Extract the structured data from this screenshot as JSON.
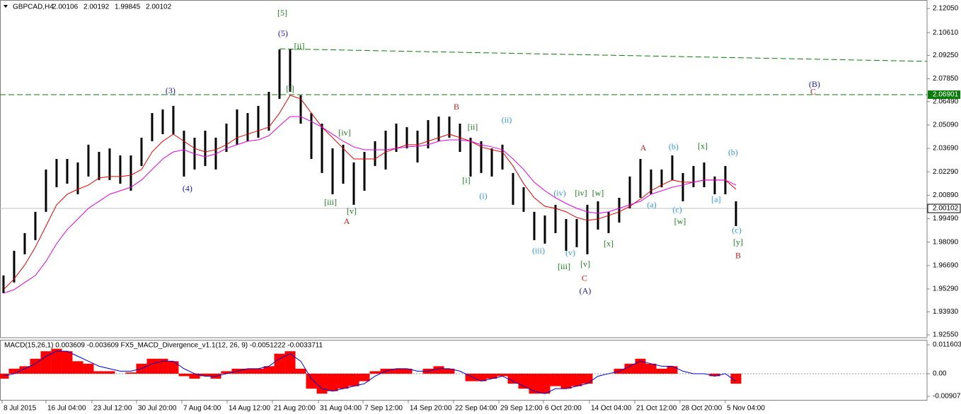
{
  "chart_data": [
    {
      "type": "ohlc",
      "title": "GBPCAD,H4",
      "ohlc": [
        2.00106,
        2.00192,
        1.99845,
        2.00102
      ],
      "color": "#000000",
      "grid": false,
      "xlim": [
        -0.33,
        87
      ],
      "ylim": [
        1.9238,
        2.1243
      ],
      "yticks": [
        {
          "value": 2.1205,
          "label": "2.12050"
        },
        {
          "value": 2.1061,
          "label": "2.10610"
        },
        {
          "value": 2.0925,
          "label": "2.09250"
        },
        {
          "value": 2.0785,
          "label": "2.07850"
        },
        {
          "value": 2.0649,
          "label": "2.06490"
        },
        {
          "value": 2.0509,
          "label": "2.05090"
        },
        {
          "value": 2.0369,
          "label": "2.03690"
        },
        {
          "value": 2.0229,
          "label": "2.02290"
        },
        {
          "value": 2.0089,
          "label": "2.00890"
        },
        {
          "value": 1.9949,
          "label": "1.99490"
        },
        {
          "value": 1.9809,
          "label": "1.98090"
        },
        {
          "value": 1.9669,
          "label": "1.96690"
        },
        {
          "value": 1.9529,
          "label": "1.95290"
        },
        {
          "value": 1.9393,
          "label": "1.93930"
        },
        {
          "value": 1.9255,
          "label": "1.92550"
        }
      ],
      "high": [
        1.961,
        1.9757,
        1.9863,
        1.999,
        2.0243,
        2.0306,
        2.0306,
        2.0285,
        2.0391,
        2.0348,
        2.0369,
        2.0327,
        2.0327,
        2.0433,
        2.058,
        2.0602,
        2.0623,
        2.0475,
        2.0433,
        2.0475,
        2.0433,
        2.0517,
        2.0602,
        2.058,
        2.0623,
        2.0707,
        2.096,
        2.096,
        2.0686,
        2.058,
        2.0517,
        2.0369,
        2.0391,
        2.0285,
        2.0348,
        2.0412,
        2.0475,
        2.0517,
        2.0496,
        2.0475,
        2.0538,
        2.0559,
        2.0559,
        2.0517,
        2.0433,
        2.0412,
        2.0369,
        2.0391,
        2.0222,
        2.0137,
        1.999,
        1.9968,
        2.0032,
        1.9947,
        1.9947,
        2.0032,
        2.0053,
        1.999,
        2.0074,
        2.0201,
        2.0306,
        2.0243,
        2.0243,
        2.0327,
        2.0222,
        2.0264,
        2.0285,
        2.0201,
        2.0264,
        2.0053
      ],
      "low": [
        1.9504,
        1.9568,
        1.9736,
        1.9821,
        1.999,
        2.0137,
        2.0158,
        2.0095,
        2.0201,
        2.018,
        2.018,
        2.0158,
        2.0116,
        2.0264,
        2.0412,
        2.0454,
        2.0454,
        2.0201,
        2.0243,
        2.0264,
        2.0243,
        2.0348,
        2.0391,
        2.0412,
        2.0433,
        2.0475,
        2.0665,
        2.0707,
        2.0517,
        2.0306,
        2.0222,
        2.0095,
        2.0158,
        2.0032,
        2.0116,
        2.0264,
        2.0243,
        2.0348,
        2.0369,
        2.0285,
        2.0369,
        2.0412,
        2.0433,
        2.0348,
        2.0201,
        2.0222,
        2.0201,
        2.0243,
        2.0032,
        1.999,
        1.9821,
        1.98,
        1.9863,
        1.9757,
        1.9779,
        1.9736,
        1.9884,
        1.9863,
        1.9926,
        2.0011,
        2.0074,
        2.0095,
        2.0137,
        2.018,
        2.0053,
        2.0137,
        2.0137,
        2.0095,
        2.0095,
        1.9905
      ],
      "ma_fast": {
        "color": "#e00000",
        "values": [
          1.9525,
          1.9589,
          1.9673,
          1.9779,
          1.9905,
          2.0032,
          2.0095,
          2.0125,
          2.015,
          2.0192,
          2.0201,
          2.0201,
          2.0209,
          2.0243,
          2.0348,
          2.0412,
          2.0454,
          2.0412,
          2.0369,
          2.0348,
          2.0361,
          2.0391,
          2.0433,
          2.0454,
          2.0475,
          2.0496,
          2.058,
          2.0686,
          2.0665,
          2.058,
          2.0496,
          2.0433,
          2.0369,
          2.0306,
          2.0306,
          2.0306,
          2.0348,
          2.0369,
          2.0391,
          2.0391,
          2.0412,
          2.0433,
          2.0454,
          2.0433,
          2.0412,
          2.0378,
          2.0361,
          2.0348,
          2.0264,
          2.0158,
          2.0074,
          2.0023,
          2.0011,
          1.999,
          1.9956,
          1.9939,
          1.9947,
          1.9968,
          1.999,
          2.0023,
          2.0066,
          2.0116,
          2.015,
          2.018,
          2.0167,
          2.0167,
          2.018,
          2.018,
          2.018,
          2.0125
        ]
      },
      "ma_slow": {
        "color": "#e000e0",
        "values": [
          1.9504,
          1.9525,
          1.9568,
          1.961,
          1.9694,
          1.98,
          1.9884,
          1.9947,
          2.0011,
          2.0053,
          2.0095,
          2.0116,
          2.0137,
          2.018,
          2.0243,
          2.0306,
          2.0348,
          2.0361,
          2.0336,
          2.0319,
          2.0336,
          2.0369,
          2.0391,
          2.0412,
          2.042,
          2.0445,
          2.0504,
          2.0559,
          2.0559,
          2.053,
          2.0496,
          2.0454,
          2.0412,
          2.0378,
          2.0361,
          2.0361,
          2.0361,
          2.0369,
          2.0378,
          2.0382,
          2.0391,
          2.0412,
          2.042,
          2.042,
          2.0412,
          2.0391,
          2.0378,
          2.0361,
          2.0306,
          2.0243,
          2.0167,
          2.0116,
          2.0074,
          2.004,
          2.0011,
          1.999,
          1.9981,
          1.999,
          2.0011,
          2.0032,
          2.0053,
          2.0095,
          2.0116,
          2.0137,
          2.015,
          2.0167,
          2.018,
          2.018,
          2.018,
          2.015
        ]
      },
      "levels": [
        {
          "value": 2.06901,
          "color": "#0a7a0a"
        }
      ],
      "current_price": 2.00102,
      "trendline": {
        "x": [
          26,
          87
        ],
        "values": [
          2.0964,
          2.0889
        ],
        "color": "#0a7a0a"
      },
      "annotations": [
        {
          "text": "[5]",
          "x": 26.27,
          "y": 2.1175,
          "color": "#1a7a1a"
        },
        {
          "text": "(5)",
          "x": 26.33,
          "y": 2.1053,
          "color": "#1a1aa6"
        },
        {
          "text": "[ii]",
          "x": 27.87,
          "y": 2.0977,
          "color": "#1a7a1a"
        },
        {
          "text": "[i]",
          "x": 27,
          "y": 2.072,
          "color": "#1a7a1a"
        },
        {
          "text": "(3)",
          "x": 15.73,
          "y": 2.0711,
          "color": "#1a1aa6"
        },
        {
          "text": "(4)",
          "x": 17.33,
          "y": 2.0125,
          "color": "#1a1aa6"
        },
        {
          "text": "[iv]",
          "x": 32.13,
          "y": 2.0458,
          "color": "#1a7a1a"
        },
        {
          "text": "[iii]",
          "x": 30.8,
          "y": 2.0044,
          "color": "#1a7a1a"
        },
        {
          "text": "[v]",
          "x": 32.8,
          "y": 1.999,
          "color": "#1a7a1a"
        },
        {
          "text": "A",
          "x": 32.33,
          "y": 1.993,
          "color": "#b22222"
        },
        {
          "text": "B",
          "x": 42.67,
          "y": 2.0614,
          "color": "#b22222"
        },
        {
          "text": "[ii]",
          "x": 44.2,
          "y": 2.0492,
          "color": "#1a7a1a"
        },
        {
          "text": "[i]",
          "x": 43.6,
          "y": 2.0175,
          "color": "#1a7a1a"
        },
        {
          "text": "(ii)",
          "x": 47.4,
          "y": 2.0534,
          "color": "#3399dd"
        },
        {
          "text": "(i)",
          "x": 45.2,
          "y": 2.0082,
          "color": "#3399dd"
        },
        {
          "text": "(iii)",
          "x": 50.4,
          "y": 1.9753,
          "color": "#3399dd"
        },
        {
          "text": "(iv)",
          "x": 52.4,
          "y": 2.0099,
          "color": "#3399dd"
        },
        {
          "text": "[iv]",
          "x": 54.4,
          "y": 2.0099,
          "color": "#1a7a1a"
        },
        {
          "text": "[w]",
          "x": 56,
          "y": 2.0099,
          "color": "#1a7a1a"
        },
        {
          "text": "(v)",
          "x": 53.4,
          "y": 1.9741,
          "color": "#3399dd"
        },
        {
          "text": "[iii]",
          "x": 52.8,
          "y": 1.966,
          "color": "#1a7a1a"
        },
        {
          "text": "[v]",
          "x": 54.8,
          "y": 1.9673,
          "color": "#1a7a1a"
        },
        {
          "text": "C",
          "x": 54.73,
          "y": 1.9589,
          "color": "#b22222"
        },
        {
          "text": "(A)",
          "x": 54.8,
          "y": 1.9513,
          "color": "#1a1aa6"
        },
        {
          "text": "[x]",
          "x": 57,
          "y": 1.9796,
          "color": "#1a7a1a"
        },
        {
          "text": "A",
          "x": 60.27,
          "y": 2.0369,
          "color": "#b22222"
        },
        {
          "text": "(a)",
          "x": 61.07,
          "y": 2.0028,
          "color": "#3399dd"
        },
        {
          "text": "(b)",
          "x": 63.13,
          "y": 2.0374,
          "color": "#3399dd"
        },
        {
          "text": "(c)",
          "x": 63.47,
          "y": 1.9998,
          "color": "#3399dd"
        },
        {
          "text": "[w]",
          "x": 63.73,
          "y": 1.993,
          "color": "#1a7a1a"
        },
        {
          "text": "[x]",
          "x": 65.87,
          "y": 2.0378,
          "color": "#1a7a1a"
        },
        {
          "text": "(b)",
          "x": 68.73,
          "y": 2.034,
          "color": "#3399dd"
        },
        {
          "text": "[a]",
          "x": 67.13,
          "y": 2.0061,
          "color": "#3399dd"
        },
        {
          "text": "(c)",
          "x": 69.07,
          "y": 1.9876,
          "color": "#3399dd"
        },
        {
          "text": "[y]",
          "x": 69.2,
          "y": 1.9804,
          "color": "#1a7a1a"
        },
        {
          "text": "B",
          "x": 69.2,
          "y": 1.9724,
          "color": "#b22222"
        },
        {
          "text": "(B)",
          "x": 76.4,
          "y": 2.0749,
          "color": "#1a1aa6"
        },
        {
          "text": "C",
          "x": 76.27,
          "y": 2.0703,
          "color": "#b22222"
        }
      ]
    },
    {
      "type": "macd",
      "title": "MACD(15,26,1) 0.003609 -0.003609   FX5_MACD_Divergence_v1.1(12, 26, 9) -0.0051222 -0.0033711",
      "color": "#ff0000",
      "signal_color": "#0000cc",
      "xlim": [
        -0.33,
        87
      ],
      "ylim": [
        -0.0105,
        0.0133
      ],
      "yticks": [
        0.011603,
        {
          "value": 0,
          "label": "0.00"
        },
        -0.009071
      ],
      "xticks": [
        {
          "value": -0.13,
          "label": "8 Jul 2015"
        },
        {
          "value": 4,
          "label": "16 Jul 04:00"
        },
        {
          "value": 8.33,
          "label": "23 Jul 12:00"
        },
        {
          "value": 12.53,
          "label": "30 Jul 20:00"
        },
        {
          "value": 16.8,
          "label": "7 Aug 04:00"
        },
        {
          "value": 21.07,
          "label": "14 Aug 12:00"
        },
        {
          "value": 25.33,
          "label": "21 Aug 20:00"
        },
        {
          "value": 29.67,
          "label": "31 Aug 04:00"
        },
        {
          "value": 33.87,
          "label": "7 Sep 12:00"
        },
        {
          "value": 38.13,
          "label": "14 Sep 20:00"
        },
        {
          "value": 42.4,
          "label": "22 Sep 04:00"
        },
        {
          "value": 46.67,
          "label": "29 Sep 12:00"
        },
        {
          "value": 50.87,
          "label": "6 Oct 20:00"
        },
        {
          "value": 55.2,
          "label": "14 Oct 04:00"
        },
        {
          "value": 59.47,
          "label": "21 Oct 12:00"
        },
        {
          "value": 63.73,
          "label": "28 Oct 20:00"
        },
        {
          "value": 68,
          "label": "5 Nov 04:00"
        }
      ],
      "values": [
        -0.002,
        0.002,
        0.003,
        0.006,
        0.009,
        0.01,
        0.009,
        0.005,
        0.004,
        0.001,
        0.001,
        0,
        0.0005,
        0.004,
        0.006,
        0.006,
        0.005,
        -0.001,
        -0.002,
        -0.001,
        -0.002,
        0.001,
        0.002,
        0.002,
        0.002,
        0.003,
        0.008,
        0.009,
        0.002,
        -0.006,
        -0.008,
        -0.007,
        -0.006,
        -0.005,
        -0.003,
        0.001,
        0.002,
        0.002,
        0.002,
        0,
        0.002,
        0.003,
        0.002,
        0,
        -0.003,
        -0.003,
        -0.002,
        -0.001,
        -0.004,
        -0.006,
        -0.008,
        -0.008,
        -0.005,
        -0.006,
        -0.005,
        -0.004,
        0,
        0,
        0.002,
        0.004,
        0.006,
        0.004,
        0.002,
        0.003,
        0,
        0,
        0,
        -0.001,
        0,
        -0.004
      ],
      "signal": [
        -0.001,
        0,
        0.002,
        0.004,
        0.007,
        0.009,
        0.009,
        0.007,
        0.005,
        0.003,
        0.002,
        0.001,
        0.001,
        0.002,
        0.004,
        0.005,
        0.005,
        0.002,
        0,
        -0.001,
        -0.001,
        0,
        0.001,
        0.002,
        0.002,
        0.003,
        0.006,
        0.008,
        0.005,
        -0.002,
        -0.006,
        -0.007,
        -0.006,
        -0.005,
        -0.004,
        -0.001,
        0.001,
        0.002,
        0.002,
        0.001,
        0.001,
        0.002,
        0.002,
        0.001,
        -0.001,
        -0.003,
        -0.002,
        -0.001,
        -0.003,
        -0.005,
        -0.007,
        -0.008,
        -0.006,
        -0.006,
        -0.005,
        -0.004,
        -0.001,
        0,
        0.001,
        0.003,
        0.005,
        0.004,
        0.003,
        0.003,
        0.001,
        0,
        0,
        -0.001,
        0,
        -0.003
      ]
    }
  ]
}
